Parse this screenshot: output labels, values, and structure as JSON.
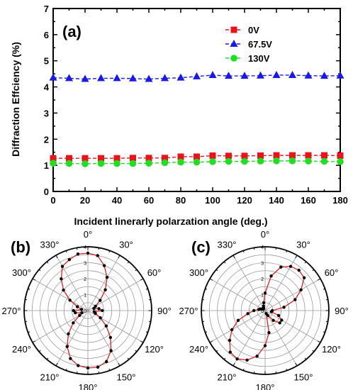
{
  "chart_data": [
    {
      "type": "line",
      "panel_label": "(a)",
      "xlabel": "Incident linerarly polarzation angle (deg.)",
      "ylabel": "Diffraction Effciency (%)",
      "xlim": [
        0,
        180
      ],
      "ylim": [
        0,
        7
      ],
      "x_ticks": [
        "0",
        "10",
        "20",
        "30",
        "40",
        "50",
        "60",
        "70",
        "80",
        "90",
        "100",
        "110",
        "120",
        "130",
        "140",
        "150",
        "160",
        "170",
        "180"
      ],
      "y_ticks": [
        "0",
        "1",
        "2",
        "3",
        "4",
        "5",
        "6",
        "7"
      ],
      "x": [
        0,
        10,
        20,
        30,
        40,
        50,
        60,
        70,
        80,
        90,
        100,
        110,
        120,
        130,
        140,
        150,
        160,
        170,
        180
      ],
      "legend_position": "top-right",
      "series": [
        {
          "name": "0V",
          "color": "#e8141b",
          "marker": "square",
          "values": [
            1.27,
            1.27,
            1.27,
            1.27,
            1.27,
            1.28,
            1.28,
            1.28,
            1.33,
            1.33,
            1.37,
            1.36,
            1.36,
            1.37,
            1.38,
            1.38,
            1.38,
            1.38,
            1.37
          ]
        },
        {
          "name": "67.5V",
          "color": "#1a1ae6",
          "marker": "triangle",
          "values": [
            4.35,
            4.33,
            4.3,
            4.33,
            4.33,
            4.32,
            4.3,
            4.33,
            4.35,
            4.4,
            4.45,
            4.42,
            4.42,
            4.43,
            4.45,
            4.45,
            4.43,
            4.42,
            4.43
          ]
        },
        {
          "name": "130V",
          "color": "#22dd22",
          "marker": "circle",
          "values": [
            1.08,
            1.07,
            1.06,
            1.07,
            1.07,
            1.07,
            1.08,
            1.1,
            1.12,
            1.12,
            1.14,
            1.15,
            1.15,
            1.16,
            1.17,
            1.17,
            1.16,
            1.15,
            1.14
          ]
        }
      ]
    },
    {
      "type": "polar",
      "panel_label": "(b)",
      "color": "#e02020",
      "radial_ticks": [
        "0",
        "1",
        "2",
        "3",
        "4"
      ],
      "r_max": 4,
      "angle_labels": [
        "0°",
        "30°",
        "60°",
        "90°",
        "120°",
        "150°",
        "180°",
        "210°",
        "240°",
        "270°",
        "300°",
        "330°"
      ],
      "theta_deg": [
        0,
        10,
        20,
        30,
        40,
        50,
        60,
        70,
        80,
        90,
        100,
        110,
        120,
        130,
        140,
        150,
        160,
        170,
        180,
        190,
        200,
        210,
        220,
        230,
        240,
        250,
        260,
        270,
        280,
        290,
        300,
        310,
        320,
        330,
        340,
        350
      ],
      "r": [
        3.6,
        3.5,
        3.0,
        2.4,
        1.7,
        1.0,
        0.55,
        0.4,
        0.7,
        0.9,
        0.4,
        0.5,
        0.9,
        1.5,
        2.2,
        2.9,
        3.4,
        3.6,
        3.6,
        3.5,
        3.2,
        2.6,
        1.9,
        1.2,
        0.6,
        0.4,
        0.8,
        0.9,
        0.4,
        0.7,
        1.3,
        2.0,
        2.6,
        3.2,
        3.4,
        3.6
      ]
    },
    {
      "type": "polar",
      "panel_label": "(c)",
      "color": "#e02020",
      "radial_ticks": [
        "0",
        "1",
        "2",
        "3",
        "4"
      ],
      "r_max": 4,
      "angle_labels": [
        "0°",
        "30°",
        "60°",
        "90°",
        "120°",
        "150°",
        "180°",
        "210°",
        "240°",
        "270°",
        "300°",
        "330°"
      ],
      "theta_deg": [
        0,
        10,
        20,
        30,
        40,
        50,
        60,
        70,
        80,
        90,
        100,
        110,
        120,
        130,
        140,
        150,
        160,
        170,
        180,
        190,
        200,
        210,
        220,
        230,
        240,
        250,
        260,
        270,
        280,
        290,
        300,
        310,
        320,
        330,
        340,
        350
      ],
      "r": [
        1.1,
        2.2,
        2.9,
        3.2,
        3.3,
        3.2,
        2.6,
        2.0,
        1.2,
        0.45,
        0.4,
        0.9,
        1.2,
        1.2,
        0.8,
        0.35,
        0.2,
        1.4,
        2.2,
        2.9,
        3.3,
        3.5,
        3.4,
        2.9,
        2.4,
        1.8,
        1.1,
        0.7,
        0.4,
        0.3,
        0.2,
        0.15,
        0.15,
        0.2,
        0.3,
        0.5
      ]
    }
  ]
}
